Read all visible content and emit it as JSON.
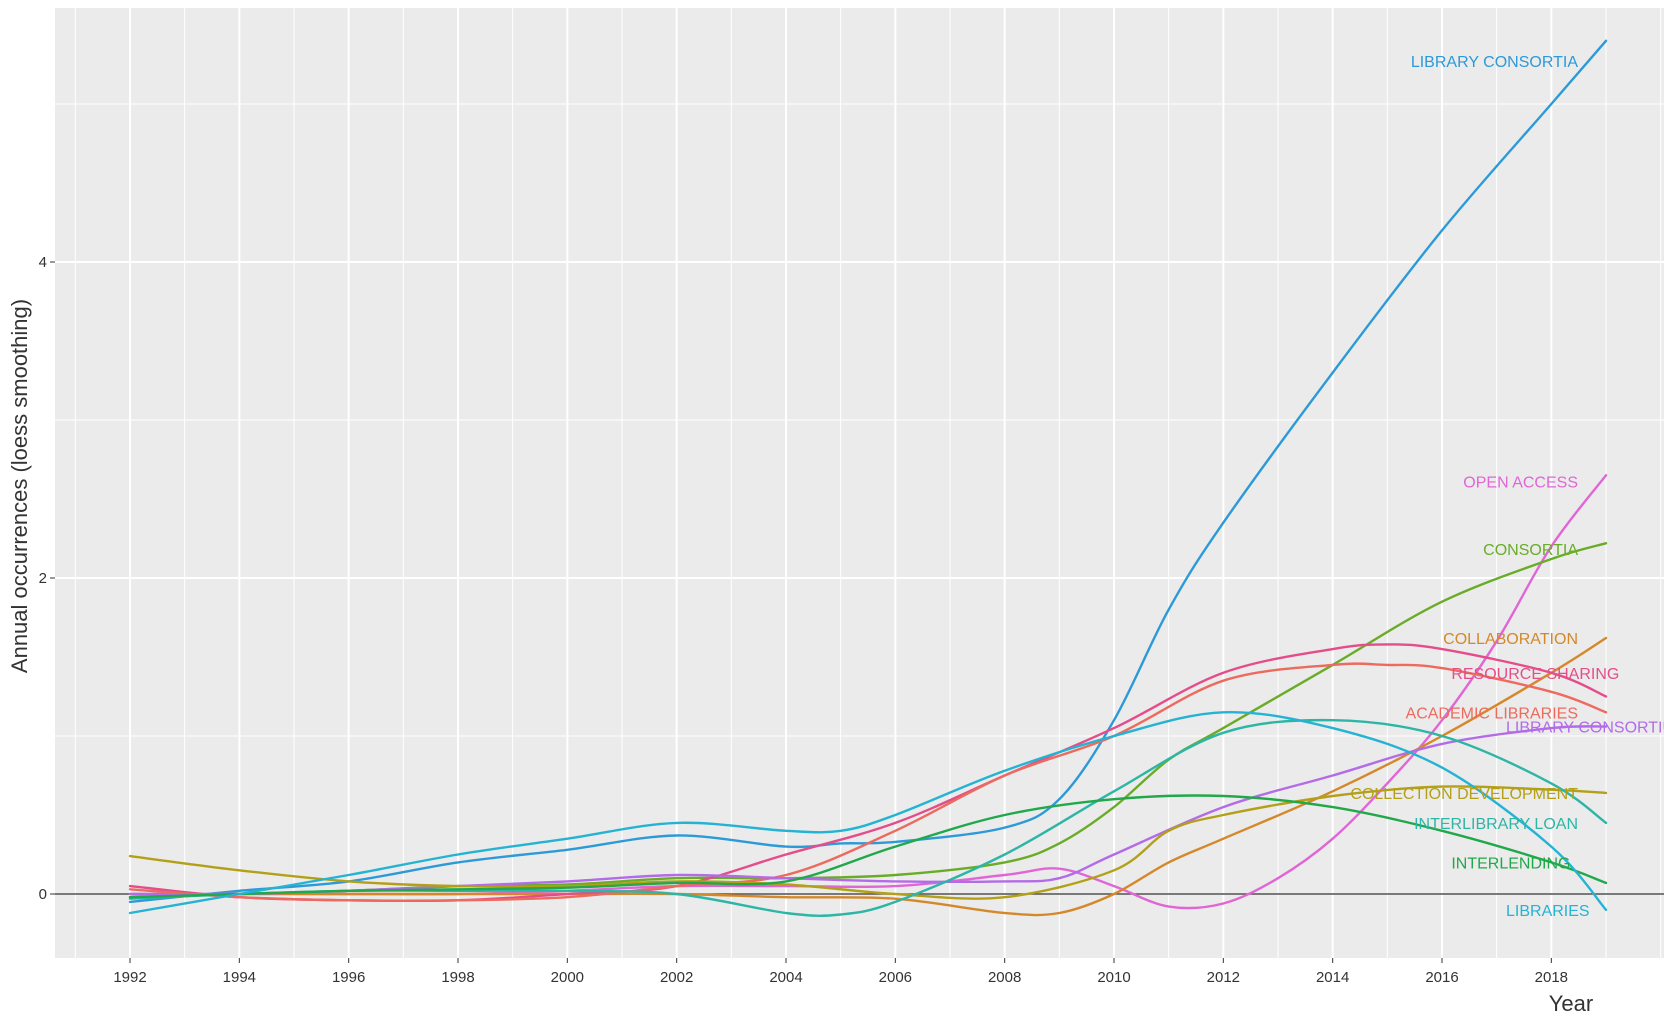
{
  "chart_data": {
    "type": "line",
    "xlabel": "Year",
    "ylabel": "Annual occurrences (loess smoothing)",
    "xlim": [
      1991,
      2020
    ],
    "ylim": [
      -0.4,
      5.7
    ],
    "xticks": [
      1992,
      1994,
      1996,
      1998,
      2000,
      2002,
      2004,
      2006,
      2008,
      2010,
      2012,
      2014,
      2016,
      2018
    ],
    "yticks": [
      0,
      2,
      4
    ],
    "grid": true,
    "legend": "direct labels at line ends",
    "zero_line": true,
    "series": [
      {
        "name": "LIBRARY CONSORTIA",
        "color": "#2c9ad8",
        "x": [
          1992,
          1994,
          1996,
          1998,
          2000,
          2002,
          2004,
          2005,
          2006,
          2008,
          2009,
          2010,
          2011,
          2012,
          2014,
          2016,
          2018,
          2019
        ],
        "y": [
          -0.05,
          0.02,
          0.08,
          0.2,
          0.28,
          0.37,
          0.3,
          0.32,
          0.33,
          0.42,
          0.6,
          1.1,
          1.8,
          2.35,
          3.3,
          4.2,
          5.0,
          5.4
        ]
      },
      {
        "name": "OPEN ACCESS",
        "color": "#e066d6",
        "x": [
          1992,
          1994,
          1996,
          1998,
          2000,
          2002,
          2004,
          2006,
          2008,
          2009,
          2010,
          2011,
          2012,
          2013,
          2014,
          2015,
          2016,
          2017,
          2018,
          2019
        ],
        "y": [
          0.0,
          0.0,
          0.0,
          0.0,
          0.02,
          0.05,
          0.05,
          0.05,
          0.12,
          0.16,
          0.05,
          -0.08,
          -0.06,
          0.1,
          0.35,
          0.7,
          1.1,
          1.6,
          2.2,
          2.65
        ]
      },
      {
        "name": "CONSORTIA",
        "color": "#6aac28",
        "x": [
          1992,
          1994,
          1996,
          1998,
          2000,
          2002,
          2004,
          2006,
          2008,
          2009,
          2010,
          2011,
          2012,
          2014,
          2016,
          2018,
          2019
        ],
        "y": [
          -0.02,
          0.0,
          0.02,
          0.05,
          0.06,
          0.1,
          0.1,
          0.12,
          0.2,
          0.32,
          0.55,
          0.85,
          1.05,
          1.45,
          1.85,
          2.12,
          2.22
        ]
      },
      {
        "name": "COLLABORATION",
        "color": "#d4882a",
        "x": [
          1992,
          1994,
          1996,
          1998,
          2000,
          2002,
          2004,
          2006,
          2008,
          2009,
          2010,
          2011,
          2012,
          2014,
          2016,
          2018,
          2019
        ],
        "y": [
          -0.02,
          0.0,
          0.0,
          0.0,
          0.0,
          0.0,
          -0.02,
          -0.03,
          -0.12,
          -0.12,
          0.0,
          0.2,
          0.35,
          0.65,
          1.0,
          1.4,
          1.62
        ]
      },
      {
        "name": "RESOURCE SHARING",
        "color": "#e44d8a",
        "x": [
          1992,
          1994,
          1996,
          1998,
          2000,
          2002,
          2004,
          2006,
          2008,
          2010,
          2012,
          2014,
          2015,
          2016,
          2018,
          2019
        ],
        "y": [
          0.05,
          -0.02,
          -0.04,
          -0.04,
          0.0,
          0.05,
          0.25,
          0.45,
          0.75,
          1.05,
          1.4,
          1.55,
          1.58,
          1.55,
          1.4,
          1.25
        ]
      },
      {
        "name": "ACADEMIC LIBRARIES",
        "color": "#ec6a5e",
        "x": [
          1992,
          1994,
          1996,
          1998,
          2000,
          2002,
          2004,
          2006,
          2008,
          2010,
          2012,
          2014,
          2015,
          2016,
          2018,
          2019
        ],
        "y": [
          0.03,
          -0.02,
          -0.04,
          -0.04,
          -0.02,
          0.05,
          0.12,
          0.4,
          0.75,
          1.0,
          1.35,
          1.45,
          1.45,
          1.43,
          1.28,
          1.15
        ]
      },
      {
        "name": "LIBRARY CONSORTIUM",
        "color": "#b36be8",
        "x": [
          1992,
          1994,
          1996,
          1998,
          2000,
          2002,
          2004,
          2006,
          2008,
          2009,
          2010,
          2012,
          2014,
          2016,
          2018,
          2019
        ],
        "y": [
          0.0,
          0.0,
          0.02,
          0.05,
          0.08,
          0.12,
          0.1,
          0.08,
          0.08,
          0.1,
          0.25,
          0.55,
          0.75,
          0.95,
          1.05,
          1.06
        ]
      },
      {
        "name": "COLLECTION DEVELOPMENT",
        "color": "#b3a018",
        "x": [
          1992,
          1994,
          1996,
          1998,
          2000,
          2002,
          2004,
          2006,
          2008,
          2010,
          2011,
          2012,
          2014,
          2016,
          2018,
          2019
        ],
        "y": [
          0.24,
          0.15,
          0.08,
          0.05,
          0.05,
          0.08,
          0.06,
          0.0,
          -0.02,
          0.15,
          0.4,
          0.5,
          0.62,
          0.68,
          0.66,
          0.64
        ]
      },
      {
        "name": "INTERLIBRARY LOAN",
        "color": "#2db5a5",
        "x": [
          1992,
          1994,
          1996,
          1998,
          2000,
          2002,
          2004,
          2005,
          2006,
          2008,
          2010,
          2012,
          2014,
          2016,
          2018,
          2019
        ],
        "y": [
          -0.03,
          0.0,
          0.02,
          0.02,
          0.02,
          0.0,
          -0.12,
          -0.13,
          -0.05,
          0.25,
          0.65,
          1.02,
          1.1,
          1.0,
          0.7,
          0.45
        ]
      },
      {
        "name": "INTERLENDING",
        "color": "#21a84a",
        "x": [
          1992,
          1994,
          1996,
          1998,
          2000,
          2002,
          2004,
          2006,
          2008,
          2010,
          2012,
          2014,
          2016,
          2018,
          2019
        ],
        "y": [
          -0.02,
          0.0,
          0.02,
          0.03,
          0.04,
          0.07,
          0.08,
          0.3,
          0.5,
          0.6,
          0.62,
          0.55,
          0.4,
          0.2,
          0.07
        ]
      },
      {
        "name": "LIBRARIES",
        "color": "#24b3d3",
        "x": [
          1992,
          1994,
          1996,
          1998,
          2000,
          2002,
          2004,
          2005,
          2006,
          2008,
          2010,
          2012,
          2014,
          2016,
          2018,
          2019
        ],
        "y": [
          -0.12,
          0.0,
          0.12,
          0.25,
          0.35,
          0.45,
          0.4,
          0.4,
          0.5,
          0.78,
          1.0,
          1.15,
          1.05,
          0.8,
          0.3,
          -0.1
        ]
      }
    ]
  }
}
